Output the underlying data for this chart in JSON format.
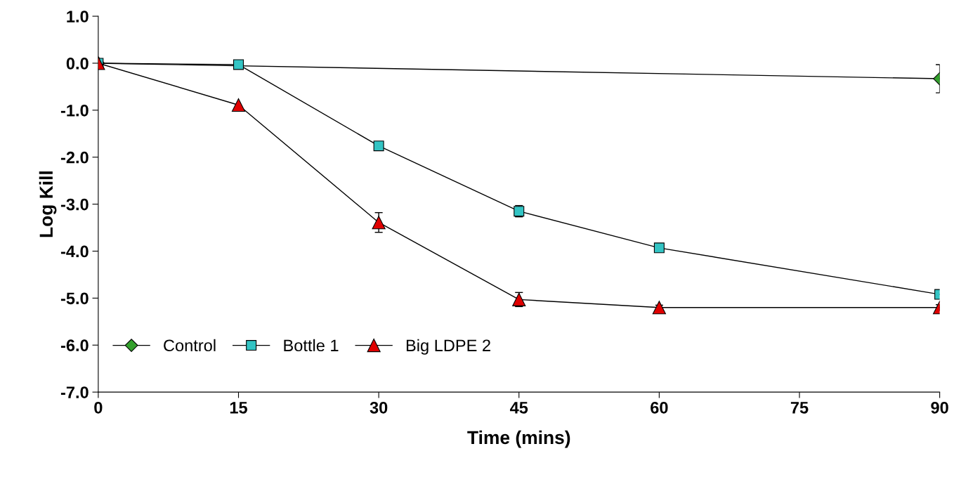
{
  "chart_data": {
    "type": "line",
    "xlabel": "Time (mins)",
    "ylabel": "Log Kill",
    "xlim": [
      0,
      90
    ],
    "xticks": [
      0,
      15,
      30,
      45,
      60,
      75,
      90
    ],
    "ylim": [
      -7,
      1
    ],
    "yticks": [
      {
        "value": 1,
        "label": "1.0"
      },
      {
        "value": 0,
        "label": "0.0"
      },
      {
        "value": -1,
        "label": "-1.0"
      },
      {
        "value": -2,
        "label": "-2.0"
      },
      {
        "value": -3,
        "label": "-3.0"
      },
      {
        "value": -4,
        "label": "-4.0"
      },
      {
        "value": -5,
        "label": "-5.0"
      },
      {
        "value": -6,
        "label": "-6.0"
      },
      {
        "value": -7,
        "label": "-7.0"
      }
    ],
    "grid": false,
    "legend": "bottom left",
    "series": [
      {
        "name": "Control",
        "color": "#33a02c",
        "marker": "diamond",
        "x": [
          0,
          90
        ],
        "values": [
          0,
          -0.33
        ],
        "errors": [
          null,
          0.3
        ]
      },
      {
        "name": "Bottle 1",
        "color": "#33c4c4",
        "marker": "square",
        "x": [
          0,
          15,
          30,
          45,
          60,
          90
        ],
        "values": [
          0,
          -0.03,
          -1.76,
          -3.15,
          -3.93,
          -4.92
        ],
        "errors": [
          null,
          null,
          0.07,
          0.12,
          null,
          null
        ]
      },
      {
        "name": "Big LDPE 2",
        "color": "#e00000",
        "marker": "triangle",
        "x": [
          0,
          15,
          30,
          45,
          60,
          90
        ],
        "values": [
          0,
          -0.89,
          -3.39,
          -5.03,
          -5.2,
          -5.2
        ],
        "errors": [
          null,
          null,
          0.21,
          0.15,
          0.05,
          0.06
        ]
      }
    ]
  }
}
